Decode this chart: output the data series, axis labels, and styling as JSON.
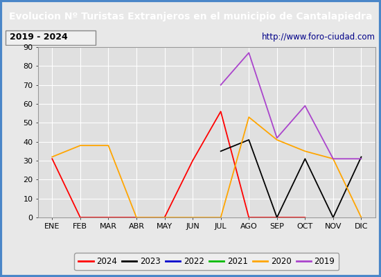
{
  "title": "Evolucion Nº Turistas Extranjeros en el municipio de Cantalapiedra",
  "subtitle_left": "2019 - 2024",
  "subtitle_right": "http://www.foro-ciudad.com",
  "months": [
    "ENE",
    "FEB",
    "MAR",
    "ABR",
    "MAY",
    "JUN",
    "JUL",
    "AGO",
    "SEP",
    "OCT",
    "NOV",
    "DIC"
  ],
  "series": {
    "2024": [
      31,
      0,
      0,
      0,
      0,
      30,
      56,
      0,
      0,
      0,
      null,
      null
    ],
    "2023": [
      null,
      null,
      null,
      null,
      null,
      null,
      35,
      41,
      0,
      31,
      0,
      32
    ],
    "2022": [],
    "2021": [],
    "2020": [
      32,
      38,
      38,
      0,
      0,
      0,
      0,
      53,
      41,
      35,
      31,
      0
    ],
    "2019": [
      null,
      null,
      null,
      null,
      null,
      null,
      70,
      87,
      42,
      59,
      31,
      31
    ]
  },
  "colors": {
    "2024": "#ff0000",
    "2023": "#000000",
    "2022": "#0000cc",
    "2021": "#00bb00",
    "2020": "#ffa500",
    "2019": "#aa44cc"
  },
  "ylim": [
    0,
    90
  ],
  "yticks": [
    0,
    10,
    20,
    30,
    40,
    50,
    60,
    70,
    80,
    90
  ],
  "title_bg": "#4a86c8",
  "title_color": "#ffffff",
  "outer_bg": "#e8e8e8",
  "subtitle_bg": "#f0f0f0",
  "plot_bg": "#e0e0e0",
  "grid_color": "#ffffff",
  "border_color": "#4a86c8"
}
